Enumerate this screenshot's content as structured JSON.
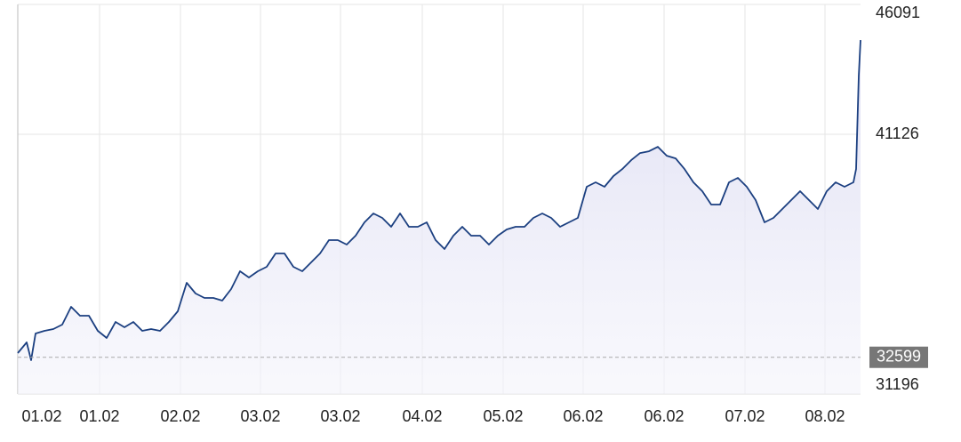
{
  "chart_data": {
    "type": "line",
    "x": [
      0,
      10,
      15,
      20,
      30,
      40,
      50,
      60,
      70,
      80,
      90,
      100,
      110,
      120,
      130,
      140,
      150,
      160,
      170,
      180,
      190,
      200,
      210,
      220,
      230,
      240,
      250,
      260,
      270,
      280,
      290,
      300,
      310,
      320,
      330,
      340,
      350,
      360,
      370,
      380,
      390,
      400,
      410,
      420,
      430,
      440,
      450,
      460,
      470,
      480,
      490,
      500,
      510,
      520,
      530,
      540,
      550,
      560,
      570,
      580,
      590,
      600,
      610,
      620,
      630,
      640,
      650,
      660,
      670,
      680,
      690,
      700,
      710,
      720,
      730,
      740,
      750,
      760,
      770,
      780,
      790,
      800,
      810,
      820,
      830,
      840,
      850,
      860,
      870,
      880,
      890,
      900,
      910,
      920,
      930,
      940,
      943,
      946,
      948
    ],
    "series": [
      {
        "color": "#1b3f80",
        "values": [
          32760,
          33168,
          32488,
          33508,
          33610,
          33678,
          33848,
          34528,
          34188,
          34188,
          33610,
          33338,
          33950,
          33746,
          33950,
          33610,
          33678,
          33610,
          33950,
          34358,
          35446,
          35038,
          34868,
          34868,
          34766,
          35208,
          35888,
          35650,
          35888,
          36058,
          36568,
          36568,
          36058,
          35888,
          36228,
          36568,
          37078,
          37078,
          36908,
          37248,
          37758,
          38098,
          37928,
          37588,
          38098,
          37588,
          37588,
          37758,
          37078,
          36738,
          37248,
          37588,
          37248,
          37248,
          36908,
          37248,
          37486,
          37588,
          37588,
          37928,
          38098,
          37928,
          37588,
          37758,
          37928,
          39118,
          39288,
          39118,
          39526,
          39798,
          40138,
          40410,
          40478,
          40648,
          40308,
          40206,
          39798,
          39288,
          38948,
          38438,
          38438,
          39288,
          39458,
          39118,
          38608,
          37758,
          37928,
          38268,
          38608,
          38948,
          38608,
          38268,
          38948,
          39288,
          39118,
          39288,
          39798,
          43368,
          44728
        ]
      }
    ],
    "xlim": [
      0,
      948
    ],
    "xticks": [
      {
        "value": 27,
        "label": "01.02"
      },
      {
        "value": 92,
        "label": "01.02"
      },
      {
        "value": 183,
        "label": "02.02"
      },
      {
        "value": 273,
        "label": "03.02"
      },
      {
        "value": 363,
        "label": "03.02"
      },
      {
        "value": 455,
        "label": "04.02"
      },
      {
        "value": 546,
        "label": "05.02"
      },
      {
        "value": 636,
        "label": "06.02"
      },
      {
        "value": 727,
        "label": "06.02"
      },
      {
        "value": 818,
        "label": "07.02"
      },
      {
        "value": 908,
        "label": "08.02"
      }
    ],
    "ylim": [
      31196,
      46091
    ],
    "yticks": [
      31196,
      41126,
      46091
    ],
    "reference": {
      "value": 32599
    },
    "grid": true
  }
}
